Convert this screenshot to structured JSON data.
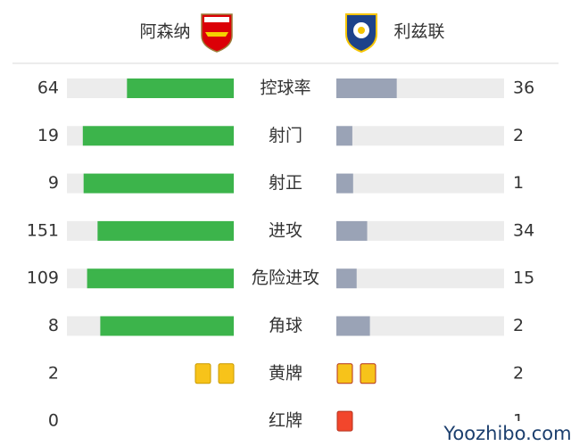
{
  "header": {
    "home": "阿森纳",
    "away": "利兹联"
  },
  "stats": [
    {
      "label": "控球率",
      "home": 64,
      "away": 36
    },
    {
      "label": "射门",
      "home": 19,
      "away": 2
    },
    {
      "label": "射正",
      "home": 9,
      "away": 1
    },
    {
      "label": "进攻",
      "home": 151,
      "away": 34
    },
    {
      "label": "危险进攻",
      "home": 109,
      "away": 15
    },
    {
      "label": "角球",
      "home": 8,
      "away": 2
    }
  ],
  "bar_colors": {
    "home": "#3cb44b",
    "away": "#9aa3b6",
    "track": "#ececec"
  },
  "cards": [
    {
      "label": "黄牌",
      "home": 2,
      "away": 2,
      "color": "#f7c31a"
    },
    {
      "label": "红牌",
      "home": 0,
      "away": 1,
      "color": "#f2462c"
    }
  ],
  "watermark": "Yoozhibo.com"
}
